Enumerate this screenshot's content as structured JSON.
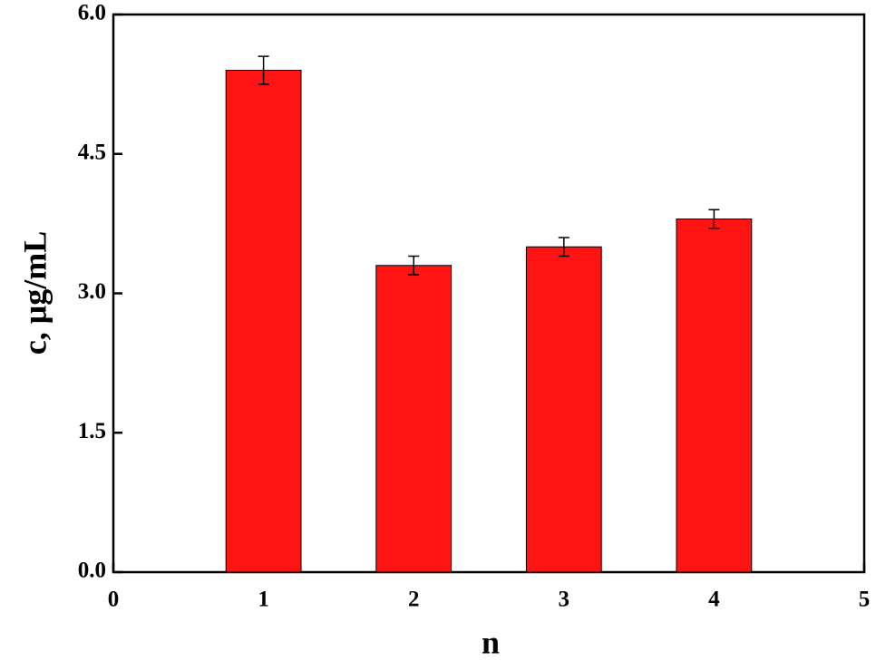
{
  "chart_data": {
    "type": "bar",
    "x_label": "n",
    "y_label": "c,  μg/mL",
    "x": [
      1,
      2,
      3,
      4
    ],
    "values": [
      5.4,
      3.3,
      3.5,
      3.8
    ],
    "errors": [
      0.15,
      0.1,
      0.1,
      0.1
    ],
    "bar_width": 0.5,
    "color": "#ff1414",
    "xlim": [
      0,
      5
    ],
    "xticks": [
      0,
      1,
      2,
      3,
      4,
      5
    ],
    "ylim": [
      0,
      6
    ],
    "yticks": [
      {
        "value": 0,
        "label": "0.0"
      },
      1.5,
      {
        "value": 3,
        "label": "3.0"
      },
      4.5,
      {
        "value": 6,
        "label": "6.0"
      }
    ],
    "grid": false
  }
}
